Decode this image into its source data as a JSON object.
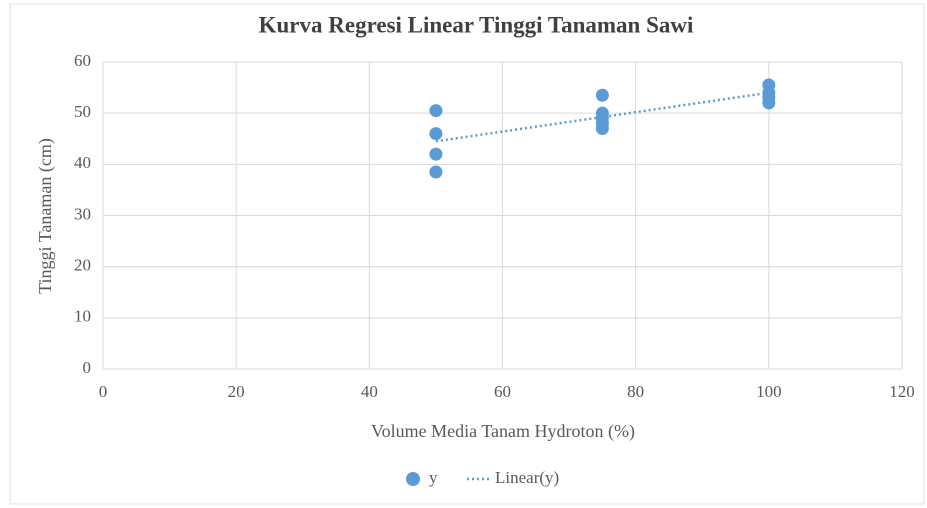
{
  "chart_data": {
    "type": "scatter",
    "title": "Kurva Regresi Linear Tinggi Tanaman Sawi",
    "x_label": "Volume Media Tanam Hydroton (%)",
    "y_label": "Tinggi Tanaman (cm)",
    "xlim": [
      0,
      120
    ],
    "xticks": [
      0,
      20,
      40,
      60,
      80,
      100,
      120
    ],
    "ylim": [
      0,
      60
    ],
    "yticks": [
      0,
      10,
      20,
      30,
      40,
      50,
      60
    ],
    "grid": true,
    "legend": "bottom",
    "series": [
      {
        "name": "y",
        "color": "#5b9bd5",
        "x": [
          50,
          50,
          50,
          50,
          75,
          75,
          75,
          75,
          75,
          100,
          100,
          100,
          100
        ],
        "values": [
          50.5,
          46,
          42,
          38.5,
          53.5,
          50,
          49,
          48,
          47,
          55.5,
          54,
          53,
          52
        ]
      },
      {
        "name": "Linear(y)",
        "color": "#5b9bd5",
        "line": "dotted",
        "x": [
          50,
          100
        ],
        "values": [
          44.5,
          54
        ]
      }
    ]
  }
}
